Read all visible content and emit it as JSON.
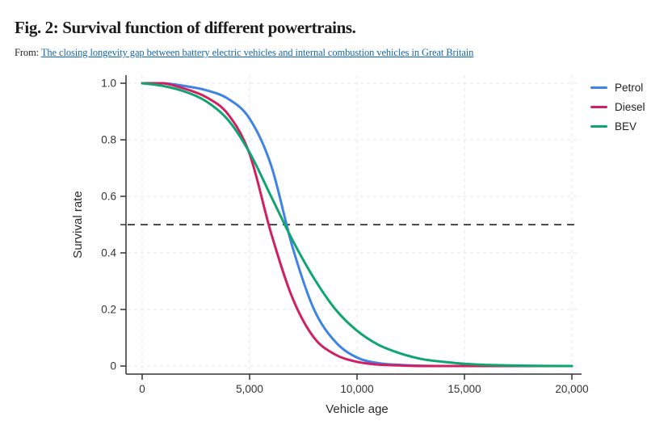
{
  "figure": {
    "title": "Fig. 2: Survival function of different powertrains.",
    "source_prefix": "From: ",
    "source_link_text": "The closing longevity gap between battery electric vehicles and internal combustion vehicles in Great Britain",
    "link_color": "#1268b3"
  },
  "chart_data": {
    "type": "line",
    "title": "",
    "xlabel": "Vehicle age",
    "ylabel": "Survival rate",
    "xlim": [
      0,
      20000
    ],
    "ylim": [
      0,
      1.0
    ],
    "x_ticks": [
      0,
      5000,
      10000,
      15000,
      20000
    ],
    "x_tick_labels": [
      "0",
      "5,000",
      "10,000",
      "15,000",
      "20,000"
    ],
    "y_ticks": [
      1.0,
      0.8,
      0.6,
      0.4,
      0.2,
      0
    ],
    "y_tick_labels": [
      "1.0",
      "0.8",
      "0.6",
      "0.4",
      "0.2",
      "0"
    ],
    "y_minor_ticks": [
      0.5
    ],
    "grid": true,
    "grid_color": "#e7e7e7",
    "axis_color": "#333333",
    "legend_position": "top-right",
    "reference_line": {
      "y": 0.5,
      "style": "dashed",
      "color": "#4d4d4d"
    },
    "x": [
      0,
      1000,
      2000,
      3000,
      4000,
      5000,
      6000,
      7000,
      8000,
      9000,
      10000,
      11000,
      12000,
      13000,
      14000,
      15000,
      16000,
      18000,
      20000
    ],
    "series": [
      {
        "name": "Petrol",
        "color": "#3f82e8",
        "values": [
          1.0,
          1.0,
          0.99,
          0.975,
          0.945,
          0.875,
          0.71,
          0.42,
          0.2,
          0.085,
          0.03,
          0.01,
          0.004,
          0.001,
          0,
          0,
          0,
          0,
          0
        ]
      },
      {
        "name": "Diesel",
        "color": "#d01f62",
        "values": [
          1.0,
          1.0,
          0.98,
          0.95,
          0.89,
          0.75,
          0.47,
          0.24,
          0.1,
          0.04,
          0.015,
          0.005,
          0.002,
          0,
          0,
          0,
          0,
          0,
          0
        ]
      },
      {
        "name": "BEV",
        "color": "#0ea56e",
        "values": [
          1.0,
          0.99,
          0.97,
          0.935,
          0.87,
          0.755,
          0.6,
          0.445,
          0.31,
          0.2,
          0.125,
          0.075,
          0.045,
          0.025,
          0.015,
          0.008,
          0.004,
          0.001,
          0
        ]
      }
    ]
  }
}
